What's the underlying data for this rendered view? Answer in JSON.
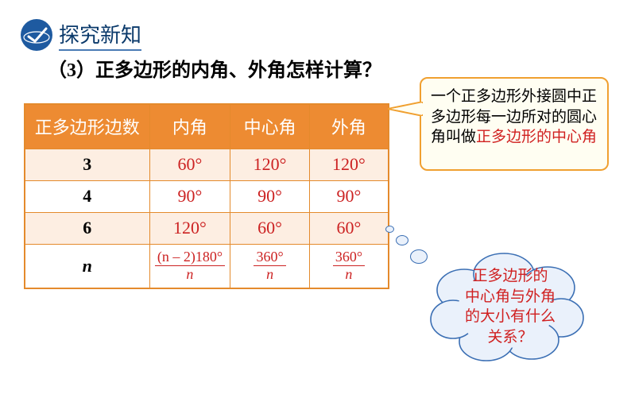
{
  "header": {
    "title": "探究新知"
  },
  "question": "（3）正多边形的内角、外角怎样计算？",
  "table": {
    "headers": [
      "正多边形边数",
      "内角",
      "中心角",
      "外角"
    ],
    "rows": [
      {
        "sides": "3",
        "interior": "60°",
        "central": "120°",
        "exterior": "120°",
        "alt": true,
        "italic": false
      },
      {
        "sides": "4",
        "interior": "90°",
        "central": "90°",
        "exterior": "90°",
        "alt": false,
        "italic": false
      },
      {
        "sides": "6",
        "interior": "120°",
        "central": "60°",
        "exterior": "60°",
        "alt": true,
        "italic": false
      },
      {
        "sides": "n",
        "interior_num": "(n – 2)180°",
        "interior_den": "n",
        "central_num": "360°",
        "central_den": "n",
        "exterior_num": "360°",
        "exterior_den": "n",
        "alt": false,
        "italic": true,
        "formula": true
      }
    ]
  },
  "callout1": {
    "text_pre": "一个正多边形外接圆中正多边形每一边所对的圆心角叫做",
    "text_hl": "正多边形的中心角"
  },
  "cloud": {
    "line1": "正多边形的",
    "line2": "中心角与外角",
    "line3": "的大小有什么",
    "line4": "关系？"
  },
  "colors": {
    "header_orange": "#ed8b32",
    "border_orange": "#e48a2c",
    "value_red": "#c22",
    "callout_bg": "#fffef2",
    "callout_border": "#f0a030",
    "cloud_fill": "#eaf1fb",
    "cloud_stroke": "#3b6fb4",
    "title_color": "#0b3a6b"
  }
}
